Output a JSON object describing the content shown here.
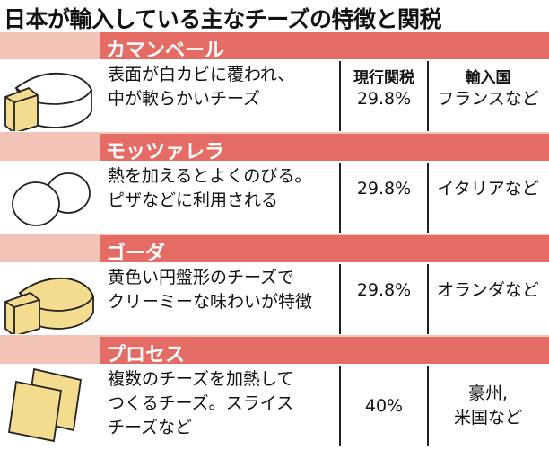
{
  "title": "日本が輸入している主なチーズの特徴と関税",
  "columns": {
    "tariff": "現行関税",
    "origin": "輸入国"
  },
  "cheeses": [
    {
      "name": "カマンベール",
      "desc_line1": "表面が白カビに覆われ、",
      "desc_line2": "中が軟らかいチーズ",
      "tariff": "29.8%",
      "origin": "フランスなど",
      "icon": "camembert-icon"
    },
    {
      "name": "モッツァレラ",
      "desc_line1": "熱を加えるとよくのびる。",
      "desc_line2": "ピザなどに利用される",
      "tariff": "29.8%",
      "origin": "イタリアなど",
      "icon": "mozzarella-icon"
    },
    {
      "name": "ゴーダ",
      "desc_line1": "黄色い円盤形のチーズで",
      "desc_line2": "クリーミーな味わいが特徴",
      "tariff": "29.8%",
      "origin": "オランダなど",
      "icon": "gouda-icon"
    },
    {
      "name": "プロセス",
      "desc_line1": "複数のチーズを加熱して",
      "desc_line2": "つくるチーズ。スライス",
      "desc_line3": "チーズなど",
      "tariff": "40%",
      "origin_line1": "豪州,",
      "origin_line2": "米国など",
      "icon": "processed-cheese-icon"
    }
  ],
  "colors": {
    "band_light": "#f3c3b8",
    "band_dark": "#e56c64",
    "cheese_yellow": "#f3dc8e"
  }
}
